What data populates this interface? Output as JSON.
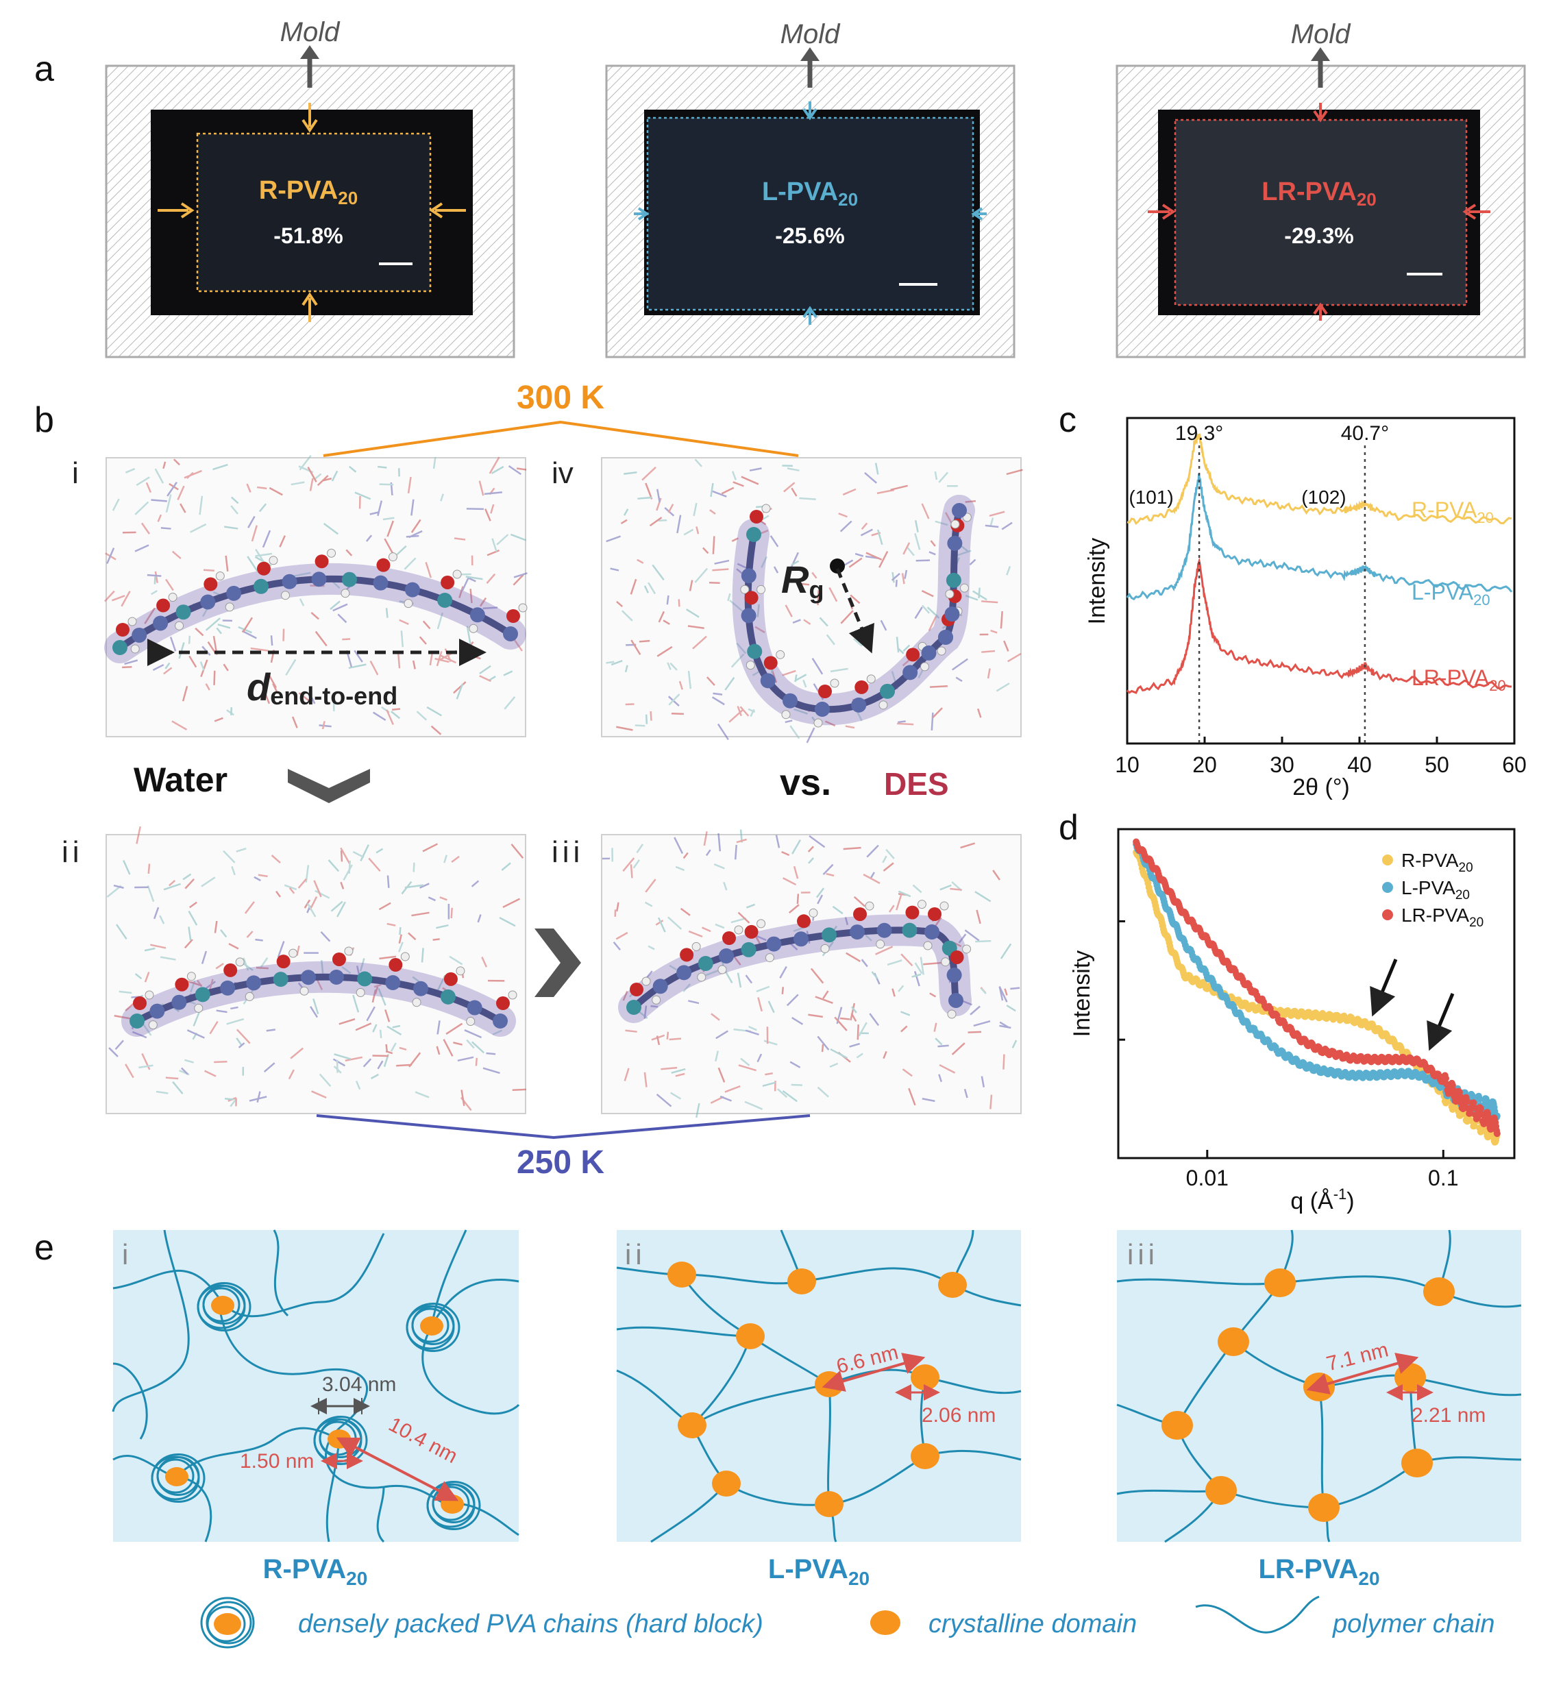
{
  "panel_labels": {
    "a": "a",
    "b": "b",
    "c": "c",
    "d": "d",
    "e": "e"
  },
  "panel_a": {
    "mold_label": "Mold",
    "films": [
      {
        "name": "R-PVA",
        "sub": "20",
        "shrink": "-51.8%",
        "color": "#f2b54a"
      },
      {
        "name": "L-PVA",
        "sub": "20",
        "shrink": "-25.6%",
        "color": "#5aafd0"
      },
      {
        "name": "LR-PVA",
        "sub": "20",
        "shrink": "-29.3%",
        "color": "#e0524a"
      }
    ]
  },
  "panel_b": {
    "temp_top": "300 K",
    "temp_bottom": "250 K",
    "roman": {
      "i": "i",
      "ii": "ii",
      "iii": "iii",
      "iv": "iv"
    },
    "d_main": "d",
    "d_sub": "end-to-end",
    "rg_main": "R",
    "rg_sub": "g",
    "water": "Water",
    "vs": "vs.",
    "des": "DES",
    "colors": {
      "orange": "#f0921c",
      "blue": "#4e55b0",
      "des": "#b5334a"
    }
  },
  "chart_data": [
    {
      "type": "line",
      "panel": "c",
      "xlabel": "2θ (°)",
      "ylabel": "Intensity",
      "xlim": [
        10,
        60
      ],
      "xticks": [
        "10",
        "20",
        "30",
        "40",
        "50",
        "60"
      ],
      "peaks": [
        {
          "x": 19.3,
          "label": "19.3°",
          "plane": "(101)"
        },
        {
          "x": 40.7,
          "label": "40.7°",
          "plane": "(102)"
        }
      ],
      "series": [
        {
          "name": "R-PVA",
          "sub": "20",
          "color": "#f5c85a",
          "x": [
            10,
            14,
            16,
            17,
            18,
            18.7,
            19.3,
            20,
            21,
            22,
            24,
            27,
            30,
            34,
            38,
            39.5,
            40.7,
            42,
            45,
            50,
            55,
            60
          ],
          "y": [
            0.7,
            0.72,
            0.74,
            0.78,
            0.86,
            0.97,
            1.0,
            0.9,
            0.83,
            0.8,
            0.78,
            0.77,
            0.755,
            0.74,
            0.74,
            0.75,
            0.765,
            0.74,
            0.72,
            0.715,
            0.71,
            0.705
          ]
        },
        {
          "name": "L-PVA",
          "sub": "20",
          "color": "#5aafd0",
          "x": [
            10,
            14,
            16,
            17,
            18,
            18.7,
            19.3,
            20,
            21,
            22,
            24,
            27,
            30,
            34,
            38,
            39.5,
            40.7,
            42,
            45,
            50,
            55,
            60
          ],
          "y": [
            0.44,
            0.46,
            0.48,
            0.52,
            0.62,
            0.78,
            0.86,
            0.74,
            0.64,
            0.6,
            0.57,
            0.56,
            0.55,
            0.53,
            0.52,
            0.53,
            0.545,
            0.52,
            0.5,
            0.49,
            0.48,
            0.47
          ]
        },
        {
          "name": "LR-PVA",
          "sub": "20",
          "color": "#e0524a",
          "x": [
            10,
            14,
            16,
            17,
            18,
            18.7,
            19.3,
            20,
            21,
            22,
            24,
            27,
            30,
            34,
            38,
            39.5,
            40.7,
            42,
            45,
            50,
            55,
            60
          ],
          "y": [
            0.12,
            0.14,
            0.16,
            0.2,
            0.3,
            0.48,
            0.57,
            0.44,
            0.32,
            0.27,
            0.24,
            0.22,
            0.21,
            0.19,
            0.18,
            0.19,
            0.21,
            0.18,
            0.165,
            0.155,
            0.145,
            0.14
          ]
        }
      ]
    },
    {
      "type": "scatter",
      "panel": "d",
      "xlabel": "q (Å",
      "xlabel_sup": "-1",
      "xlabel_end": ")",
      "ylabel": "Intensity",
      "xscale": "log",
      "yscale": "log",
      "xlim": [
        0.0042,
        0.2
      ],
      "ylim": [
        0.1,
        60
      ],
      "xticks": [
        {
          "v": 0.01,
          "label": "0.01"
        },
        {
          "v": 0.1,
          "label": "0.1"
        }
      ],
      "legend": "top-right",
      "series": [
        {
          "name": "R-PVA",
          "sub": "20",
          "color": "#f5c85a",
          "x": [
            0.005,
            0.006,
            0.007,
            0.008,
            0.01,
            0.012,
            0.015,
            0.02,
            0.025,
            0.03,
            0.04,
            0.05,
            0.06,
            0.07,
            0.08,
            0.1,
            0.12,
            0.15,
            0.17
          ],
          "y": [
            40,
            14,
            6,
            3.5,
            2.8,
            2.3,
            1.9,
            1.7,
            1.65,
            1.6,
            1.5,
            1.3,
            1.0,
            0.75,
            0.55,
            0.35,
            0.25,
            0.18,
            0.15
          ]
        },
        {
          "name": "L-PVA",
          "sub": "20",
          "color": "#5aafd0",
          "x": [
            0.005,
            0.006,
            0.007,
            0.008,
            0.01,
            0.012,
            0.015,
            0.02,
            0.025,
            0.03,
            0.04,
            0.05,
            0.06,
            0.07,
            0.08,
            0.1,
            0.12,
            0.15,
            0.17
          ],
          "y": [
            45,
            22,
            11,
            6.5,
            3.5,
            2.2,
            1.3,
            0.8,
            0.62,
            0.55,
            0.5,
            0.5,
            0.51,
            0.52,
            0.5,
            0.4,
            0.32,
            0.28,
            0.25
          ]
        },
        {
          "name": "LR-PVA",
          "sub": "20",
          "color": "#e0524a",
          "x": [
            0.005,
            0.006,
            0.007,
            0.008,
            0.01,
            0.012,
            0.015,
            0.02,
            0.025,
            0.03,
            0.04,
            0.05,
            0.06,
            0.07,
            0.08,
            0.1,
            0.12,
            0.15,
            0.17
          ],
          "y": [
            45,
            28,
            17,
            11.5,
            7,
            4.5,
            2.8,
            1.5,
            1.0,
            0.82,
            0.7,
            0.68,
            0.68,
            0.68,
            0.65,
            0.45,
            0.3,
            0.22,
            0.18
          ]
        }
      ]
    }
  ],
  "panel_e": {
    "roman": {
      "i": "i",
      "ii": "ii",
      "iii": "iii"
    },
    "labels": [
      {
        "name": "R-PVA",
        "sub": "20"
      },
      {
        "name": "L-PVA",
        "sub": "20"
      },
      {
        "name": "LR-PVA",
        "sub": "20"
      }
    ],
    "dims_i": {
      "a": "3.04 nm",
      "b": "1.50 nm",
      "c": "10.4 nm"
    },
    "dims_ii": {
      "a": "6.6 nm",
      "b": "2.06 nm"
    },
    "dims_iii": {
      "a": "7.1 nm",
      "b": "2.21 nm"
    },
    "legend": {
      "hard": "densely packed PVA chains (hard block)",
      "domain": "crystalline domain",
      "chain": "polymer chain"
    },
    "colors": {
      "bg": "#daeef8",
      "chain": "#1e8ab0",
      "domain": "#f7941d",
      "text": "#2c8cc0",
      "dim": "#d9534f"
    }
  }
}
